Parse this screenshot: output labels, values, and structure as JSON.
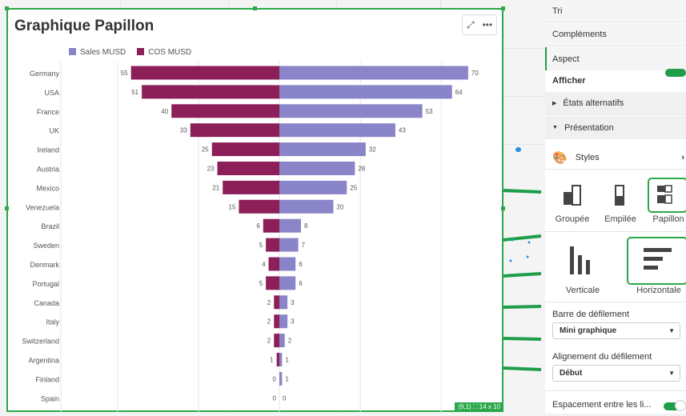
{
  "chart_data": {
    "type": "bar",
    "title": "Graphique Papillon",
    "orientation": "horizontal-butterfly",
    "categories": [
      "Germany",
      "USA",
      "France",
      "UK",
      "Ireland",
      "Austria",
      "Mexico",
      "Venezuela",
      "Brazil",
      "Sweden",
      "Denmark",
      "Portugal",
      "Canada",
      "Italy",
      "Switzerland",
      "Argentina",
      "Finland",
      "Spain"
    ],
    "series": [
      {
        "name": "Sales MUSD",
        "color": "#8a84c8",
        "side": "right",
        "values": [
          70,
          64,
          53,
          43,
          32,
          28,
          25,
          20,
          8,
          7,
          6,
          6,
          3,
          3,
          2,
          1,
          1,
          0
        ]
      },
      {
        "name": "COS MUSD",
        "color": "#8c1f58",
        "side": "left",
        "values": [
          55,
          51,
          40,
          33,
          25,
          23,
          21,
          15,
          6,
          5,
          4,
          5,
          2,
          2,
          2,
          1,
          0,
          0
        ]
      }
    ],
    "xlim": [
      -70,
      70
    ],
    "grid": true,
    "legend": "top-left"
  },
  "badge": "(9,1) ⛶ 14 x 10",
  "side": {
    "tabs": [
      "Tri",
      "Compléments",
      "Aspect"
    ],
    "afficher": "Afficher",
    "etats": "États alternatifs",
    "presentation": "Présentation",
    "styles": "Styles",
    "modes": [
      "Groupée",
      "Empilée",
      "Papillon"
    ],
    "orient": [
      "Verticale",
      "Horizontale"
    ],
    "scroll_label": "Barre de défilement",
    "scroll_value": "Mini graphique",
    "align_label": "Alignement du défilement",
    "align_value": "Début",
    "spacing_label": "Espacement entre les li..."
  }
}
